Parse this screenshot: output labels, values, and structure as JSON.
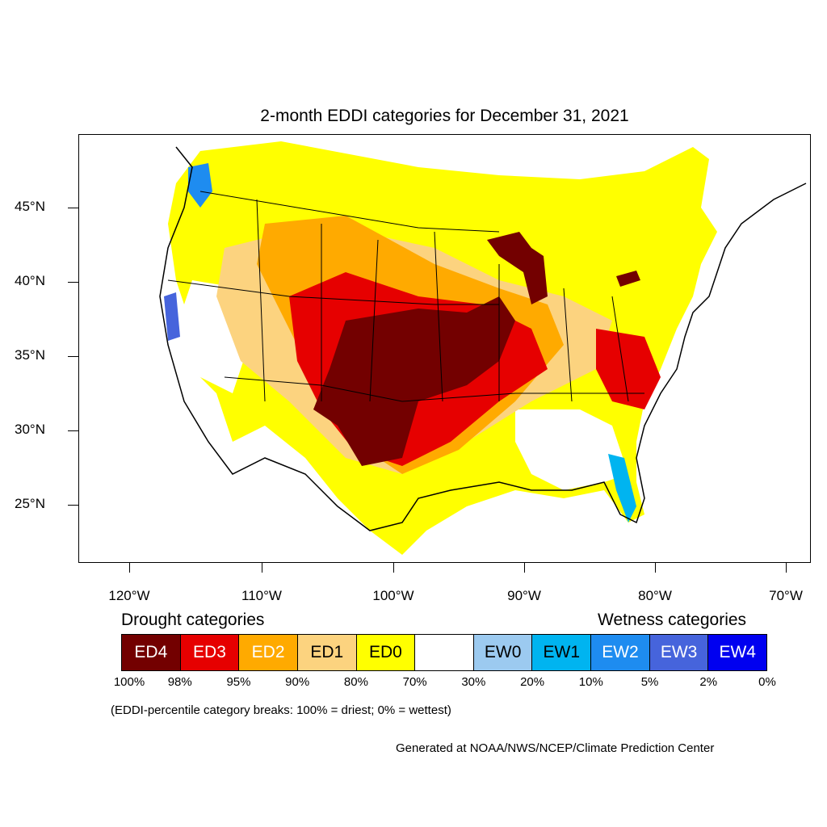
{
  "title": "2-month EDDI categories for December 31, 2021",
  "lat_axis": [
    {
      "label": "45°N"
    },
    {
      "label": "40°N"
    },
    {
      "label": "35°N"
    },
    {
      "label": "30°N"
    },
    {
      "label": "25°N"
    }
  ],
  "lon_axis": [
    {
      "label": "120°W"
    },
    {
      "label": "110°W"
    },
    {
      "label": "100°W"
    },
    {
      "label": "90°W"
    },
    {
      "label": "80°W"
    },
    {
      "label": "70°W"
    }
  ],
  "legend": {
    "drought_heading": "Drought categories",
    "wetness_heading": "Wetness categories",
    "categories": [
      {
        "label": "ED4",
        "color": "#730000",
        "text_color": "#ffffff"
      },
      {
        "label": "ED3",
        "color": "#e60000",
        "text_color": "#ffffff"
      },
      {
        "label": "ED2",
        "color": "#ffaa00",
        "text_color": "#ffffff"
      },
      {
        "label": "ED1",
        "color": "#fcd37f",
        "text_color": "#000000"
      },
      {
        "label": "ED0",
        "color": "#ffff00",
        "text_color": "#000000"
      },
      {
        "label": "",
        "color": "#ffffff",
        "text_color": "#000000"
      },
      {
        "label": "EW0",
        "color": "#9ccaf0",
        "text_color": "#000000"
      },
      {
        "label": "EW1",
        "color": "#00b4f0",
        "text_color": "#000000"
      },
      {
        "label": "EW2",
        "color": "#1e8cf0",
        "text_color": "#ffffff"
      },
      {
        "label": "EW3",
        "color": "#4664dc",
        "text_color": "#ffffff"
      },
      {
        "label": "EW4",
        "color": "#0000f0",
        "text_color": "#ffffff"
      }
    ],
    "breaks": [
      "100%",
      "98%",
      "95%",
      "90%",
      "80%",
      "70%",
      "30%",
      "20%",
      "10%",
      "5%",
      "2%",
      "0%"
    ]
  },
  "note": "(EDDI-percentile category breaks: 100% = driest; 0% = wettest)",
  "credit": "Generated at NOAA/NWS/NCEP/Climate Prediction Center"
}
